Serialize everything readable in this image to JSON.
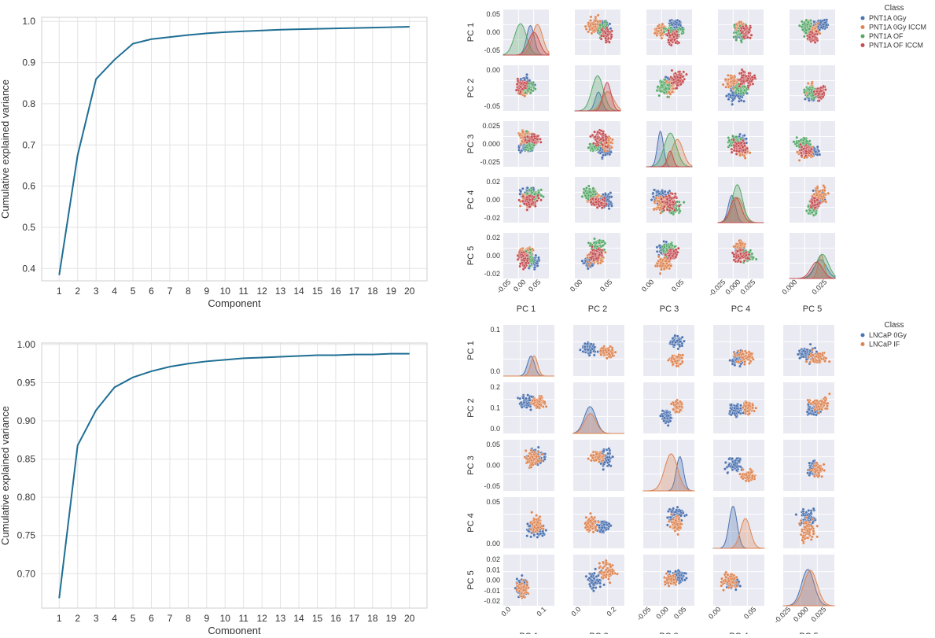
{
  "chart_data": [
    {
      "type": "line",
      "xlabel": "Component",
      "ylabel": "Cumulative explained variance",
      "x": [
        1,
        2,
        3,
        4,
        5,
        6,
        7,
        8,
        9,
        10,
        11,
        12,
        13,
        14,
        15,
        16,
        17,
        18,
        19,
        20
      ],
      "yticks": [
        "0.4",
        "0.5",
        "0.6",
        "0.7",
        "0.8",
        "0.9",
        "1.0"
      ],
      "ylim": [
        0.37,
        1.01
      ],
      "grid": true,
      "series": [
        {
          "values": [
            0.384,
            0.675,
            0.86,
            0.907,
            0.946,
            0.957,
            0.962,
            0.967,
            0.971,
            0.974,
            0.976,
            0.978,
            0.98,
            0.981,
            0.982,
            0.983,
            0.984,
            0.985,
            0.986,
            0.987
          ],
          "color": "#1f6e94"
        }
      ]
    },
    {
      "type": "scatter",
      "subtype": "pairplot",
      "variables": [
        "PC 1",
        "PC 2",
        "PC 3",
        "PC 4",
        "PC 5"
      ],
      "ytick_labels": [
        [
          "0.05",
          "0.00",
          "-0.05"
        ],
        [
          "0.00",
          "-0.05"
        ],
        [
          "0.025",
          "0.000",
          "-0.025"
        ],
        [
          "0.02",
          "0.00",
          "-0.02"
        ],
        [
          "0.02",
          "0.00",
          "-0.02"
        ]
      ],
      "xtick_labels": [
        [
          "-0.05",
          "0.00",
          "0.05"
        ],
        [
          "0.00",
          "0.05"
        ],
        [
          "0.00",
          "0.05"
        ],
        [
          "-0.025",
          "0.000",
          "0.025"
        ],
        [
          "0.000",
          "0.025"
        ]
      ],
      "legend": {
        "title": "Class",
        "position": "top-right",
        "entries": [
          {
            "name": "PNT1A 0Gy",
            "color": "#4c72b0"
          },
          {
            "name": "PNT1A 0Gy ICCM",
            "color": "#dd8452"
          },
          {
            "name": "PNT1A OF",
            "color": "#55a868"
          },
          {
            "name": "PNT1A OF ICCM",
            "color": "#c44e52"
          }
        ]
      },
      "grid": true
    },
    {
      "type": "line",
      "xlabel": "Component",
      "ylabel": "Cumulative explained variance",
      "x": [
        1,
        2,
        3,
        4,
        5,
        6,
        7,
        8,
        9,
        10,
        11,
        12,
        13,
        14,
        15,
        16,
        17,
        18,
        19,
        20
      ],
      "yticks": [
        "0.70",
        "0.75",
        "0.80",
        "0.85",
        "0.90",
        "0.95",
        "1.00"
      ],
      "ylim": [
        0.655,
        1.002
      ],
      "grid": true,
      "series": [
        {
          "values": [
            0.668,
            0.868,
            0.914,
            0.944,
            0.957,
            0.965,
            0.971,
            0.975,
            0.978,
            0.98,
            0.982,
            0.983,
            0.984,
            0.985,
            0.986,
            0.986,
            0.987,
            0.987,
            0.988,
            0.988
          ],
          "color": "#1f6e94"
        }
      ]
    },
    {
      "type": "scatter",
      "subtype": "pairplot",
      "variables": [
        "PC 1",
        "PC 2",
        "PC 3",
        "PC 4",
        "PC 5"
      ],
      "ytick_labels": [
        [
          "0.1",
          "0.0"
        ],
        [
          "0.2",
          "0.1",
          "0.0"
        ],
        [
          "0.05",
          "0.00",
          "-0.05"
        ],
        [
          "0.05",
          "0.00"
        ],
        [
          "0.02",
          "0.01",
          "0.00",
          "-0.01",
          "-0.02"
        ]
      ],
      "xtick_labels": [
        [
          "0.0",
          "0.1"
        ],
        [
          "0.0",
          "0.2"
        ],
        [
          "-0.05",
          "0.00",
          "0.05"
        ],
        [
          "0.00",
          "0.05"
        ],
        [
          "-0.025",
          "0.000",
          "0.025"
        ]
      ],
      "legend": {
        "title": "Class",
        "position": "top-right",
        "entries": [
          {
            "name": "LNCaP 0Gy",
            "color": "#4c72b0"
          },
          {
            "name": "LNCaP IF",
            "color": "#dd8452"
          }
        ]
      },
      "grid": true
    }
  ]
}
